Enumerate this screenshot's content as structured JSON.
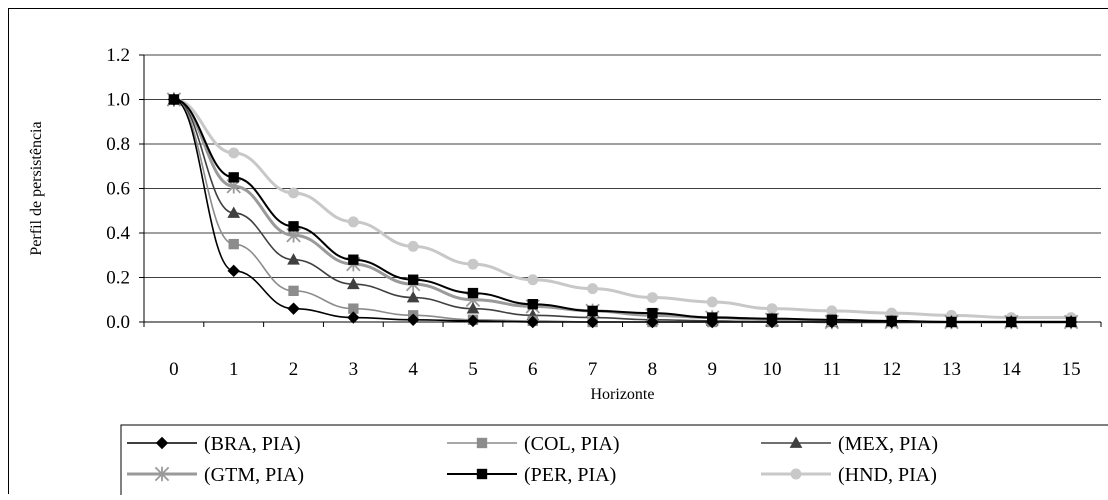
{
  "chart_data": {
    "type": "line",
    "xlabel": "Horizonte",
    "ylabel": "Perfil de persistência",
    "x": [
      0,
      1,
      2,
      3,
      4,
      5,
      6,
      7,
      8,
      9,
      10,
      11,
      12,
      13,
      14,
      15
    ],
    "ylim": [
      0,
      1.2
    ],
    "yticks": [
      "0.0",
      "0.2",
      "0.4",
      "0.6",
      "0.8",
      "1.0",
      "1.2"
    ],
    "xticks": [
      "0",
      "1",
      "2",
      "3",
      "4",
      "5",
      "6",
      "7",
      "8",
      "9",
      "10",
      "11",
      "12",
      "13",
      "14",
      "15"
    ],
    "grid": "horizontal",
    "legend_position": "bottom",
    "series": [
      {
        "name": "(BRA, PIA)",
        "color": "#000000",
        "marker": "diamond",
        "values": [
          1.0,
          0.23,
          0.06,
          0.02,
          0.01,
          0.005,
          0.0,
          0.0,
          0.0,
          0.0,
          0.0,
          0.0,
          0.0,
          0.0,
          0.0,
          0.0
        ]
      },
      {
        "name": "(COL, PIA)",
        "color": "#8c8c8c",
        "marker": "square",
        "values": [
          1.0,
          0.35,
          0.14,
          0.06,
          0.03,
          0.01,
          0.005,
          0.0,
          0.0,
          0.0,
          0.0,
          0.0,
          0.0,
          0.0,
          0.0,
          0.0
        ]
      },
      {
        "name": "(MEX, PIA)",
        "color": "#404040",
        "marker": "triangle",
        "values": [
          1.0,
          0.49,
          0.28,
          0.17,
          0.11,
          0.06,
          0.03,
          0.02,
          0.01,
          0.005,
          0.0,
          0.0,
          0.0,
          0.0,
          0.0,
          0.0
        ]
      },
      {
        "name": "(GTM, PIA)",
        "color": "#9a9a9a",
        "marker": "asterisk",
        "values": [
          1.0,
          0.61,
          0.39,
          0.26,
          0.17,
          0.1,
          0.07,
          0.05,
          0.03,
          0.02,
          0.01,
          0.0,
          0.0,
          0.0,
          0.0,
          0.0
        ]
      },
      {
        "name": "(PER, PIA)",
        "color": "#000000",
        "marker": "square",
        "values": [
          1.0,
          0.65,
          0.43,
          0.28,
          0.19,
          0.13,
          0.08,
          0.05,
          0.04,
          0.02,
          0.015,
          0.01,
          0.005,
          0.0,
          0.0,
          0.0
        ]
      },
      {
        "name": "(HND, PIA)",
        "color": "#c8c8c8",
        "marker": "circle",
        "values": [
          1.0,
          0.76,
          0.58,
          0.45,
          0.34,
          0.26,
          0.19,
          0.15,
          0.11,
          0.09,
          0.06,
          0.05,
          0.04,
          0.03,
          0.02,
          0.02
        ]
      }
    ]
  }
}
